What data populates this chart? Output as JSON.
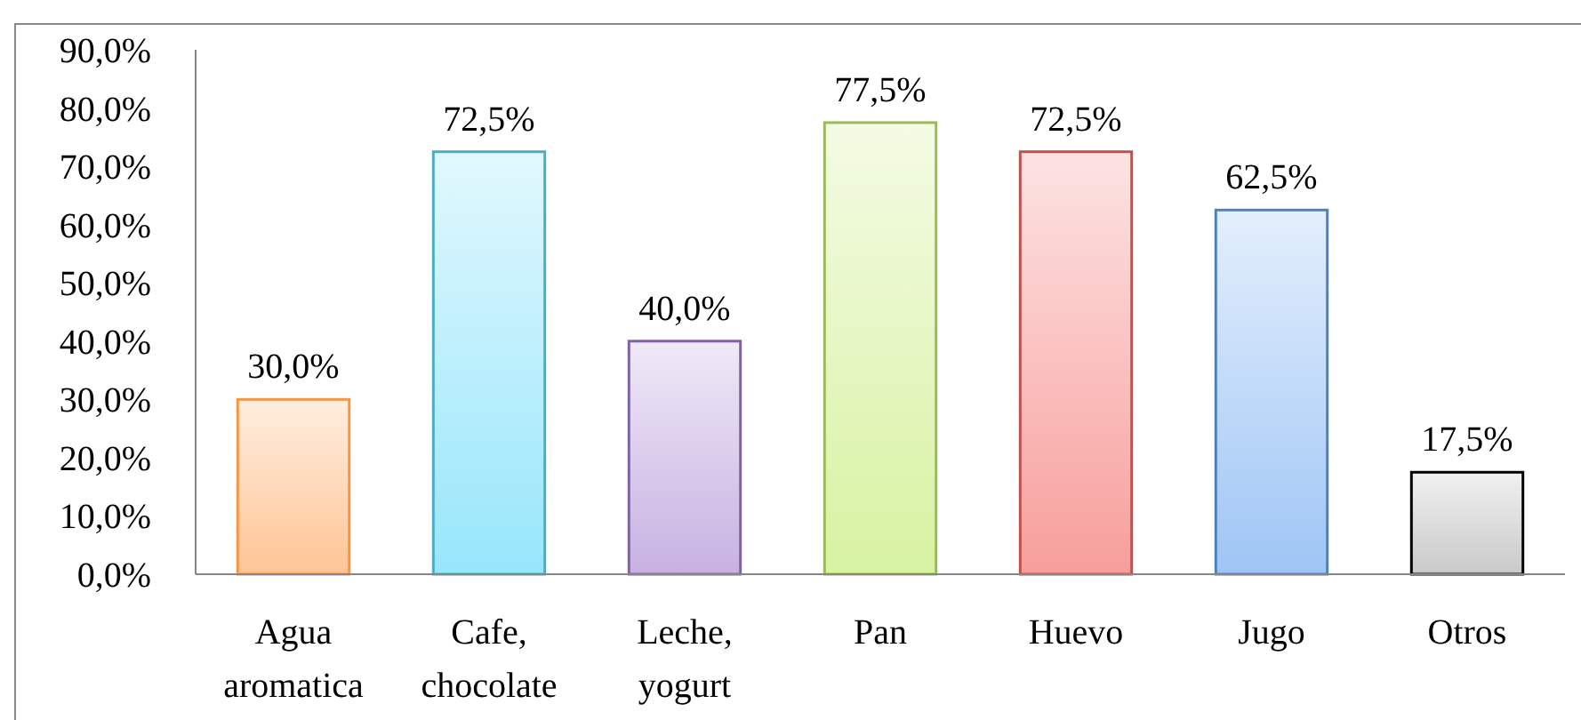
{
  "chart_data": {
    "type": "bar",
    "categories": [
      "Agua aromatica",
      "Cafe, chocolate",
      "Leche, yogurt",
      "Pan",
      "Huevo",
      "Jugo",
      "Otros"
    ],
    "values": [
      30.0,
      72.5,
      40.0,
      77.5,
      72.5,
      62.5,
      17.5
    ],
    "colors": [
      "#f79646",
      "#4bacc6",
      "#8064a2",
      "#9bbb59",
      "#c0504d",
      "#4f81bd",
      "#000000"
    ],
    "value_labels": [
      "30,0%",
      "72,5%",
      "40,0%",
      "77,5%",
      "72,5%",
      "62,5%",
      "17,5%"
    ],
    "ylim": [
      0,
      90
    ],
    "yticks": [
      {
        "value": 0,
        "label": "0,0%"
      },
      {
        "value": 10,
        "label": "10,0%"
      },
      {
        "value": 20,
        "label": "20,0%"
      },
      {
        "value": 30,
        "label": "30,0%"
      },
      {
        "value": 40,
        "label": "40,0%"
      },
      {
        "value": 50,
        "label": "50,0%"
      },
      {
        "value": 60,
        "label": "60,0%"
      },
      {
        "value": 70,
        "label": "70,0%"
      },
      {
        "value": 80,
        "label": "80,0%"
      },
      {
        "value": 90,
        "label": "90,0%"
      }
    ],
    "grid": false
  }
}
